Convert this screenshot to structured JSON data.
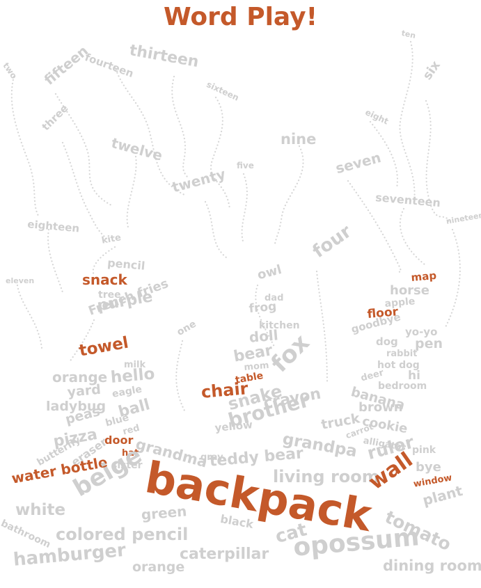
{
  "title": "Word Play!",
  "colors": {
    "accent": "#c4592a",
    "word": "#cfcfcf",
    "trail": "#d6d6d6",
    "background": "#ffffff"
  },
  "words": [
    "two",
    "fourteen",
    "thirteen",
    "ten",
    "fifteen",
    "sixteen",
    "six",
    "eight",
    "three",
    "twelve",
    "nine",
    "five",
    "seven",
    "twenty",
    "seventeen",
    "eighteen",
    "nineteen",
    "kite",
    "pencil",
    "four",
    "eleven",
    "owl",
    "snack",
    "map",
    "tree",
    "dad",
    "horse",
    "purple",
    "apple",
    "frog",
    "French fries",
    "floor",
    "kitchen",
    "goodbye",
    "yo-yo",
    "one",
    "doll",
    "dog",
    "pen",
    "towel",
    "rabbit",
    "milk",
    "bear",
    "mom",
    "hello",
    "orange",
    "fox",
    "hot dog",
    "table",
    "deer",
    "hi",
    "yard",
    "eagle",
    "chair",
    "bedroom",
    "banana",
    "snake",
    "ladybug",
    "crayon",
    "brown",
    "ball",
    "peas",
    "blue",
    "yellow",
    "cookie",
    "truck",
    "red",
    "brother",
    "carrot",
    "door",
    "pizza",
    "alligator",
    "grandma",
    "grandpa",
    "pink",
    "hat",
    "ruler",
    "butterfly",
    "gray",
    "eraser",
    "sister",
    "teddy bear",
    "bye",
    "water bottle",
    "living room",
    "backpack",
    "beige",
    "window",
    "wall",
    "plant",
    "white",
    "green",
    "black",
    "tomato",
    "colored pencil",
    "bathroom",
    "cat",
    "caterpillar",
    "hamburger",
    "opossum",
    "orange",
    "dining room"
  ]
}
